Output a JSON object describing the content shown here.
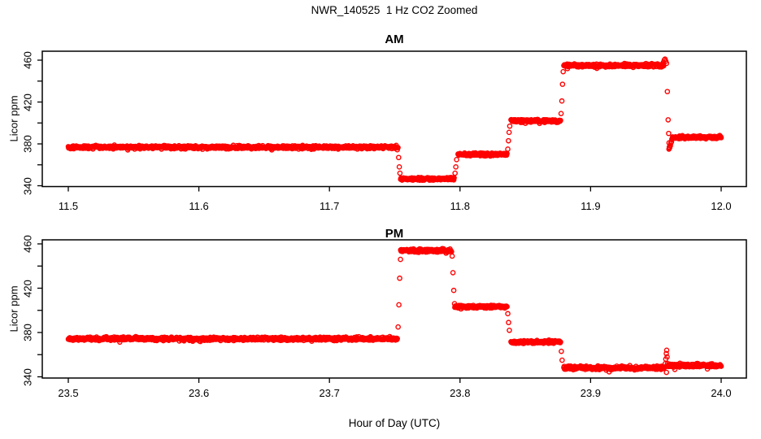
{
  "page_title": "NWR_140525  1 Hz CO2 Zoomed",
  "xlabel": "Hour of Day (UTC)",
  "colors": {
    "points": "#FF0000",
    "axis": "#000000",
    "text": "#000000",
    "background": "#FFFFFF"
  },
  "chart_data": [
    {
      "type": "scatter",
      "panel": "AM",
      "title": "AM",
      "ylabel": "Licor ppm",
      "marker": "open-circle",
      "color": "#FF0000",
      "sample_rate_hz": 1,
      "xlim": [
        11.48,
        12.02
      ],
      "ylim": [
        339,
        466
      ],
      "xticks": [
        11.5,
        11.6,
        11.7,
        11.8,
        11.9,
        12.0
      ],
      "xtick_labels": [
        "11.5",
        "11.6",
        "11.7",
        "11.8",
        "11.9",
        "12.0"
      ],
      "yticks_labeled": [
        340,
        380,
        420,
        460
      ],
      "ytick_labels": [
        "340",
        "380",
        "420",
        "460"
      ],
      "yticks_minor": [
        360,
        400,
        440
      ],
      "grid": false,
      "legend": false,
      "segments": [
        {
          "x0": 11.5,
          "x1": 11.7525,
          "level": 376.8,
          "noise": 0.9
        },
        {
          "x0": 11.7545,
          "x1": 11.7955,
          "level": 346.6,
          "noise": 0.8
        },
        {
          "x0": 11.7985,
          "x1": 11.836,
          "level": 370.0,
          "noise": 0.8
        },
        {
          "x0": 11.839,
          "x1": 11.877,
          "level": 402.0,
          "noise": 0.8
        },
        {
          "x0": 11.8795,
          "x1": 11.956,
          "level": 455.0,
          "noise": 0.9
        },
        {
          "x0": 11.96,
          "x1": 12.0,
          "level": 386.5,
          "noise": 0.8,
          "rise_from": 374.0,
          "rise_points": 10
        }
      ],
      "transition_points": [
        {
          "x": 11.753,
          "y": 367
        },
        {
          "x": 11.7535,
          "y": 358
        },
        {
          "x": 11.754,
          "y": 352
        },
        {
          "x": 11.7962,
          "y": 352
        },
        {
          "x": 11.7968,
          "y": 358
        },
        {
          "x": 11.7974,
          "y": 365
        },
        {
          "x": 11.8366,
          "y": 375
        },
        {
          "x": 11.8371,
          "y": 383
        },
        {
          "x": 11.8376,
          "y": 391
        },
        {
          "x": 11.8381,
          "y": 397
        },
        {
          "x": 11.8774,
          "y": 409
        },
        {
          "x": 11.878,
          "y": 421
        },
        {
          "x": 11.8785,
          "y": 437
        },
        {
          "x": 11.879,
          "y": 449
        },
        {
          "x": 11.9552,
          "y": 456
        },
        {
          "x": 11.9558,
          "y": 458
        },
        {
          "x": 11.9564,
          "y": 460
        },
        {
          "x": 11.957,
          "y": 461
        },
        {
          "x": 11.9576,
          "y": 459
        },
        {
          "x": 11.9582,
          "y": 457
        },
        {
          "x": 11.9588,
          "y": 430
        },
        {
          "x": 11.9594,
          "y": 403
        },
        {
          "x": 11.9598,
          "y": 390
        },
        {
          "x": 11.9601,
          "y": 381
        },
        {
          "x": 11.9603,
          "y": 376
        }
      ]
    },
    {
      "type": "scatter",
      "panel": "PM",
      "title": "PM",
      "ylabel": "Licor ppm",
      "marker": "open-circle",
      "color": "#FF0000",
      "sample_rate_hz": 1,
      "xlim": [
        23.48,
        24.02
      ],
      "ylim": [
        339,
        466
      ],
      "xticks": [
        23.5,
        23.6,
        23.7,
        23.8,
        23.9,
        24.0
      ],
      "xtick_labels": [
        "23.5",
        "23.6",
        "23.7",
        "23.8",
        "23.9",
        "24.0"
      ],
      "yticks_labeled": [
        340,
        380,
        420,
        460
      ],
      "ytick_labels": [
        "340",
        "380",
        "420",
        "460"
      ],
      "yticks_minor": [
        360,
        400,
        440
      ],
      "grid": false,
      "legend": false,
      "segments": [
        {
          "x0": 23.5,
          "x1": 23.752,
          "level": 374.4,
          "noise": 0.9
        },
        {
          "x0": 23.7545,
          "x1": 23.7935,
          "level": 454.0,
          "noise": 0.9
        },
        {
          "x0": 23.796,
          "x1": 23.836,
          "level": 403.3,
          "noise": 0.8
        },
        {
          "x0": 23.839,
          "x1": 23.877,
          "level": 371.5,
          "noise": 0.8
        },
        {
          "x0": 23.8795,
          "x1": 23.957,
          "level": 348.2,
          "noise": 0.9
        },
        {
          "x0": 23.959,
          "x1": 24.0,
          "level": 350.3,
          "noise": 0.9
        }
      ],
      "transition_points": [
        {
          "x": 23.7526,
          "y": 385
        },
        {
          "x": 23.7532,
          "y": 405
        },
        {
          "x": 23.7538,
          "y": 429
        },
        {
          "x": 23.7544,
          "y": 446
        },
        {
          "x": 23.794,
          "y": 449
        },
        {
          "x": 23.7946,
          "y": 434
        },
        {
          "x": 23.7952,
          "y": 418
        },
        {
          "x": 23.7958,
          "y": 406
        },
        {
          "x": 23.8366,
          "y": 397
        },
        {
          "x": 23.8372,
          "y": 389
        },
        {
          "x": 23.8378,
          "y": 382
        },
        {
          "x": 23.8776,
          "y": 363
        },
        {
          "x": 23.8782,
          "y": 355
        },
        {
          "x": 23.9572,
          "y": 352
        },
        {
          "x": 23.9576,
          "y": 356
        },
        {
          "x": 23.958,
          "y": 361
        },
        {
          "x": 23.9583,
          "y": 364
        },
        {
          "x": 23.9586,
          "y": 358
        },
        {
          "x": 23.9589,
          "y": 352
        },
        {
          "x": 23.9581,
          "y": 344
        }
      ]
    }
  ]
}
